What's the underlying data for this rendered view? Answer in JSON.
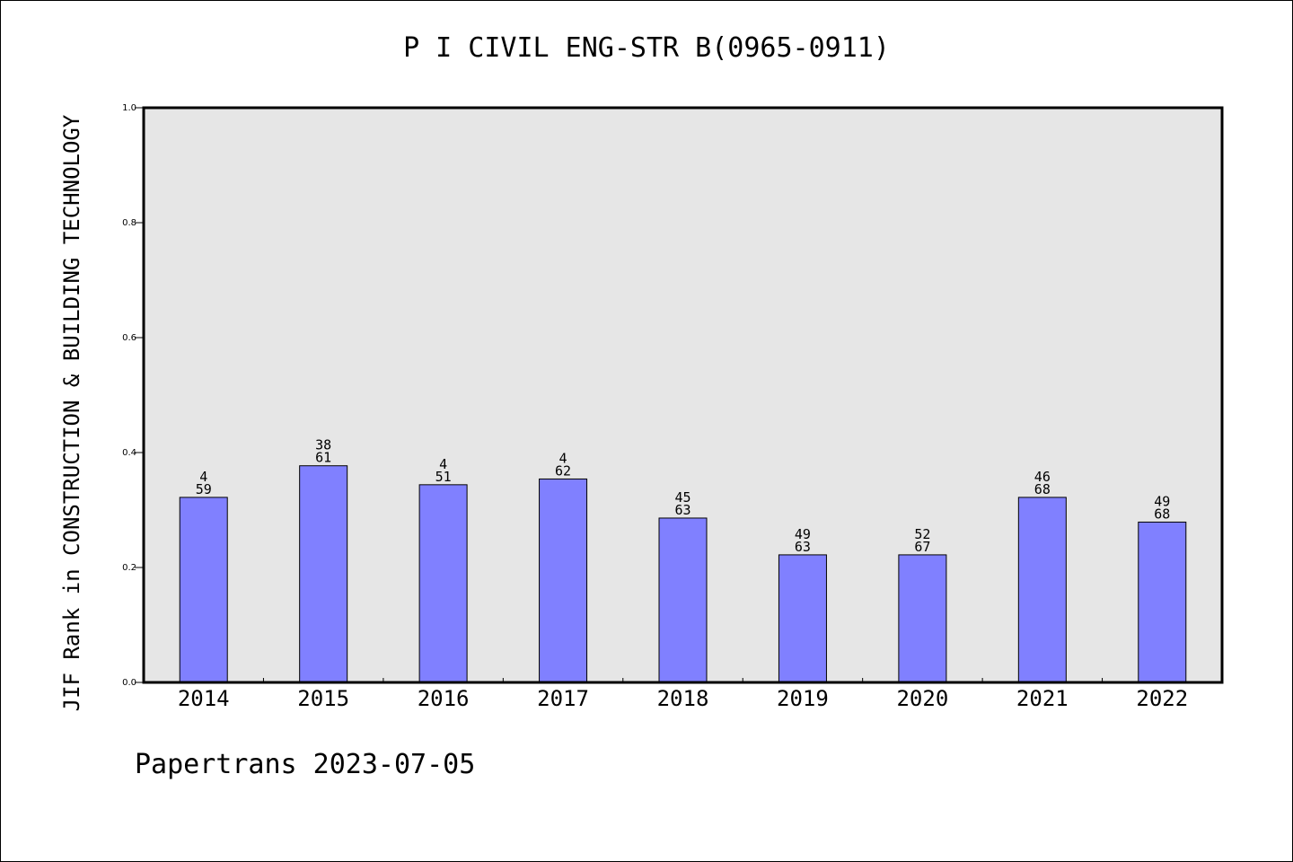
{
  "chart_data": {
    "type": "bar",
    "title": "P I CIVIL ENG-STR B(0965-0911)",
    "ylabel": "JIF Rank in CONSTRUCTION & BUILDING TECHNOLOGY",
    "xlabel": "",
    "categories": [
      "2014",
      "2015",
      "2016",
      "2017",
      "2018",
      "2019",
      "2020",
      "2021",
      "2022"
    ],
    "values": [
      0.322,
      0.377,
      0.344,
      0.354,
      0.286,
      0.222,
      0.222,
      0.322,
      0.279
    ],
    "bar_labels": [
      [
        "4",
        "59"
      ],
      [
        "38",
        "61"
      ],
      [
        "4",
        "51"
      ],
      [
        "4",
        "62"
      ],
      [
        "45",
        "63"
      ],
      [
        "49",
        "63"
      ],
      [
        "52",
        "67"
      ],
      [
        "46",
        "68"
      ],
      [
        "49",
        "68"
      ]
    ],
    "ylim": [
      0.0,
      1.0
    ],
    "yticks": [
      "0.0",
      "0.2",
      "0.4",
      "0.6",
      "0.8",
      "1.0"
    ],
    "grid": false,
    "colors": {
      "bar": "#8080ff",
      "plot_bg": "#e6e6e6",
      "axis": "#000000"
    }
  },
  "footer": {
    "text": "Papertrans 2023-07-05"
  }
}
